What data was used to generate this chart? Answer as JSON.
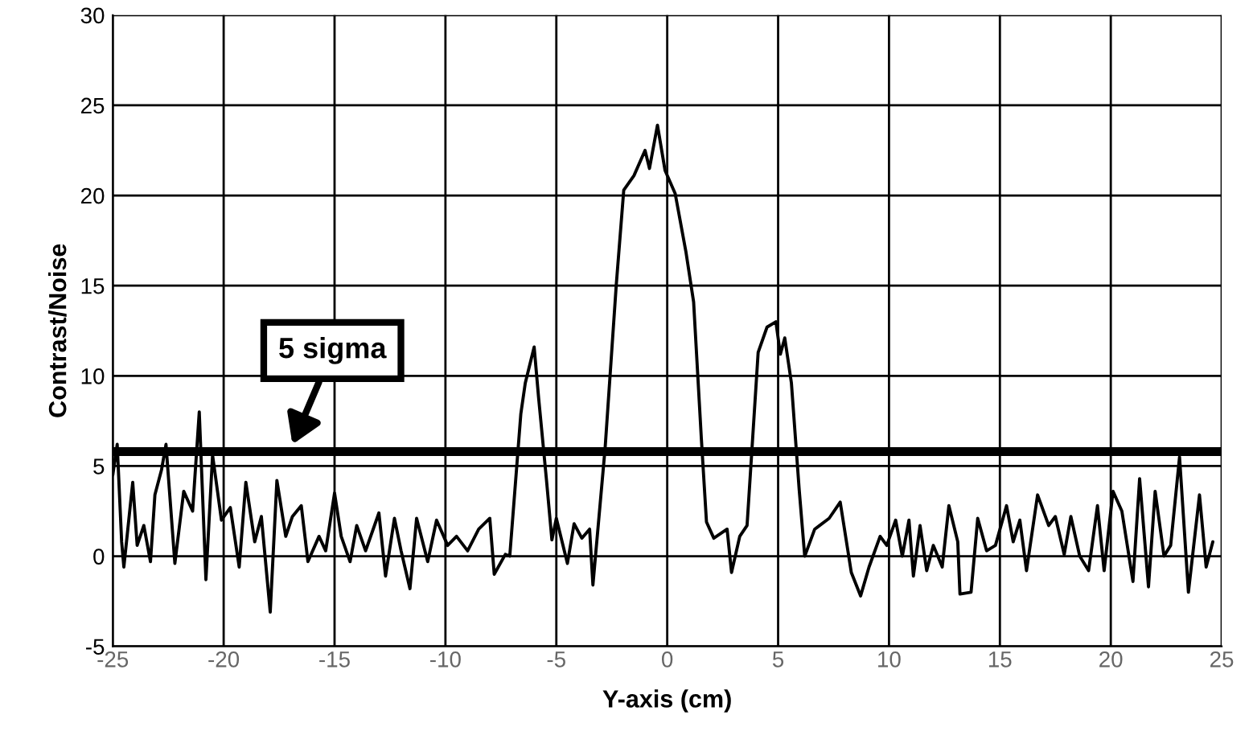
{
  "chart_data": {
    "type": "line",
    "xlabel": "Y-axis (cm)",
    "ylabel": "Contrast/Noise",
    "xlim": [
      -25,
      25
    ],
    "ylim": [
      -5,
      30
    ],
    "xticks": [
      -25,
      -20,
      -15,
      -10,
      -5,
      0,
      5,
      10,
      15,
      20,
      25
    ],
    "yticks": [
      -5,
      0,
      5,
      10,
      15,
      20,
      25,
      30
    ],
    "grid": true,
    "line_style": "solid",
    "marker": "none",
    "series": [
      {
        "color": "#000000",
        "x": [
          -25.0,
          -24.8,
          -24.6,
          -24.5,
          -24.1,
          -23.9,
          -23.6,
          -23.3,
          -23.1,
          -22.8,
          -22.6,
          -22.2,
          -21.8,
          -21.4,
          -21.1,
          -20.8,
          -20.5,
          -20.1,
          -19.7,
          -19.3,
          -19.0,
          -18.6,
          -18.3,
          -17.9,
          -17.6,
          -17.2,
          -16.9,
          -16.5,
          -16.2,
          -15.7,
          -15.4,
          -15.0,
          -14.7,
          -14.3,
          -14.0,
          -13.6,
          -13.0,
          -12.7,
          -12.3,
          -12.0,
          -11.6,
          -11.3,
          -10.8,
          -10.4,
          -9.9,
          -9.5,
          -9.0,
          -8.5,
          -8.0,
          -7.8,
          -7.3,
          -7.1,
          -6.6,
          -6.4,
          -6.0,
          -5.8,
          -5.45,
          -5.2,
          -5.0,
          -4.5,
          -4.2,
          -3.85,
          -3.5,
          -3.35,
          -2.8,
          -2.3,
          -1.96,
          -1.5,
          -1.0,
          -0.8,
          -0.44,
          -0.1,
          0.36,
          0.84,
          1.19,
          1.54,
          1.77,
          2.1,
          2.7,
          2.9,
          3.27,
          3.6,
          3.85,
          4.1,
          4.5,
          4.9,
          5.1,
          5.3,
          5.6,
          5.95,
          6.2,
          6.65,
          7.3,
          7.8,
          8.3,
          8.72,
          9.1,
          9.6,
          9.9,
          10.3,
          10.6,
          10.9,
          11.1,
          11.4,
          11.7,
          12.0,
          12.4,
          12.7,
          13.1,
          13.2,
          13.7,
          14.0,
          14.4,
          14.8,
          15.3,
          15.6,
          15.9,
          16.2,
          16.7,
          17.2,
          17.5,
          17.9,
          18.2,
          18.6,
          19.0,
          19.4,
          19.7,
          20.1,
          20.5,
          21.0,
          21.3,
          21.7,
          22.0,
          22.4,
          22.7,
          23.1,
          23.5,
          24.0,
          24.3,
          24.6
        ],
        "values": [
          4.5,
          6.2,
          0.8,
          -0.6,
          4.1,
          0.6,
          1.7,
          -0.3,
          3.4,
          4.8,
          6.2,
          -0.4,
          3.6,
          2.5,
          8.0,
          -1.3,
          5.6,
          2.0,
          2.7,
          -0.6,
          4.1,
          0.8,
          2.2,
          -3.1,
          4.2,
          1.1,
          2.2,
          2.8,
          -0.3,
          1.1,
          0.3,
          3.5,
          1.1,
          -0.3,
          1.7,
          0.3,
          2.4,
          -1.1,
          2.1,
          0.3,
          -1.8,
          2.1,
          -0.3,
          2.0,
          0.6,
          1.1,
          0.3,
          1.5,
          2.1,
          -1.0,
          0.1,
          0.0,
          7.9,
          9.6,
          11.6,
          8.8,
          4.3,
          0.9,
          2.1,
          -0.4,
          1.8,
          1.0,
          1.5,
          -1.6,
          6.0,
          15.0,
          20.3,
          21.1,
          22.5,
          21.5,
          23.9,
          21.4,
          20.1,
          16.9,
          14.1,
          6.5,
          1.9,
          1.0,
          1.5,
          -0.9,
          1.1,
          1.7,
          6.5,
          11.3,
          12.7,
          13.0,
          11.2,
          12.1,
          9.6,
          3.7,
          0.0,
          1.5,
          2.1,
          3.0,
          -0.9,
          -2.2,
          -0.6,
          1.1,
          0.6,
          2.0,
          0.0,
          2.0,
          -1.1,
          1.7,
          -0.8,
          0.6,
          -0.6,
          2.8,
          0.8,
          -2.1,
          -2.0,
          2.1,
          0.3,
          0.6,
          2.8,
          0.8,
          2.0,
          -0.8,
          3.4,
          1.7,
          2.2,
          0.1,
          2.2,
          0.0,
          -0.8,
          2.8,
          -0.8,
          3.6,
          2.5,
          -1.4,
          4.3,
          -1.7,
          3.6,
          0.0,
          0.6,
          5.5,
          -2.0,
          3.4,
          -0.6,
          0.8
        ]
      }
    ],
    "ref_lines": [
      {
        "axis": "y",
        "value": 5.8,
        "color": "#000000",
        "line_style": "solid"
      }
    ],
    "annotations": [
      {
        "text": "5 sigma",
        "x": -16.9,
        "y": 6.2
      }
    ]
  }
}
